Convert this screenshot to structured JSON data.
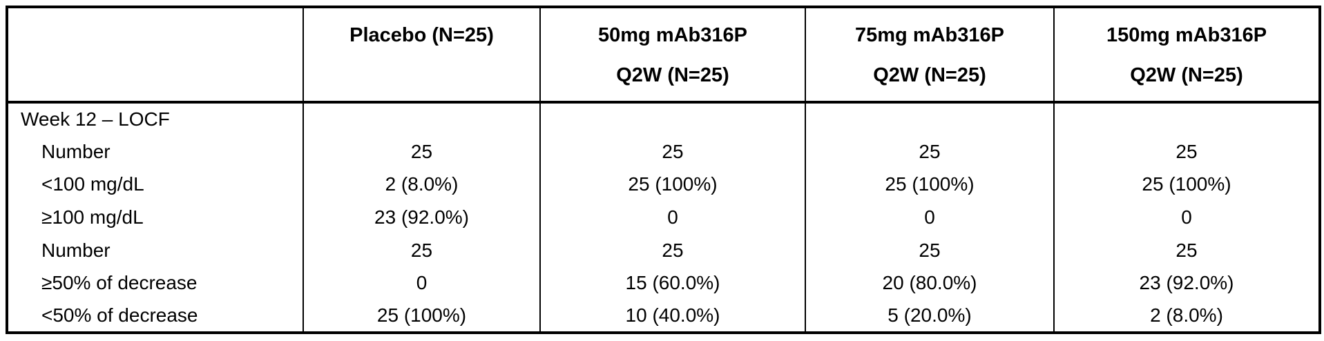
{
  "colors": {
    "background": "#ffffff",
    "border": "#000000",
    "text": "#000000"
  },
  "table": {
    "columns": [
      {
        "line1": "",
        "line2": ""
      },
      {
        "line1": "Placebo (N=25)",
        "line2": ""
      },
      {
        "line1": "50mg mAb316P",
        "line2": "Q2W (N=25)"
      },
      {
        "line1": "75mg mAb316P",
        "line2": "Q2W (N=25)"
      },
      {
        "line1": "150mg mAb316P",
        "line2": "Q2W (N=25)"
      }
    ],
    "rows": [
      {
        "label": "Week 12 – LOCF",
        "values": [
          "",
          "",
          "",
          ""
        ]
      },
      {
        "label": "Number",
        "values": [
          "25",
          "25",
          "25",
          "25"
        ]
      },
      {
        "label": "<100 mg/dL",
        "values": [
          "2 (8.0%)",
          "25 (100%)",
          "25 (100%)",
          "25 (100%)"
        ]
      },
      {
        "label": "≥100 mg/dL",
        "values": [
          "23 (92.0%)",
          "0",
          "0",
          "0"
        ]
      },
      {
        "label": "Number",
        "values": [
          "25",
          "25",
          "25",
          "25"
        ]
      },
      {
        "label": "≥50% of decrease",
        "values": [
          "0",
          "15 (60.0%)",
          "20 (80.0%)",
          "23 (92.0%)"
        ]
      },
      {
        "label": "<50% of decrease",
        "values": [
          "25 (100%)",
          "10 (40.0%)",
          "5 (20.0%)",
          "2 (8.0%)"
        ]
      }
    ]
  }
}
